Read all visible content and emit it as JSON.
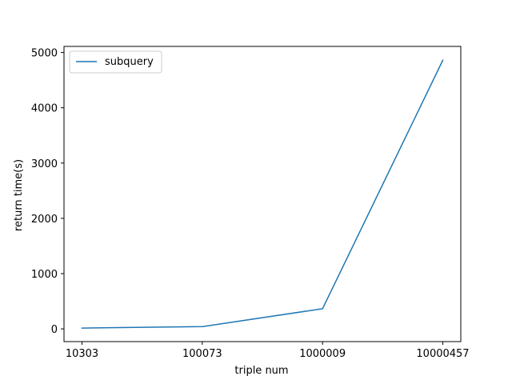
{
  "chart_data": {
    "type": "line",
    "x": [
      "10303",
      "100073",
      "1000009",
      "10000457"
    ],
    "series": [
      {
        "name": "subquery",
        "values": [
          15,
          40,
          365,
          4860
        ],
        "color": "#1f77b4"
      }
    ],
    "xlabel": "triple num",
    "ylabel": "return time(s)",
    "ylim": [
      -230,
      5110
    ],
    "yticks": [
      0,
      1000,
      2000,
      3000,
      4000,
      5000
    ],
    "grid": false,
    "legend_position": "top-left"
  }
}
